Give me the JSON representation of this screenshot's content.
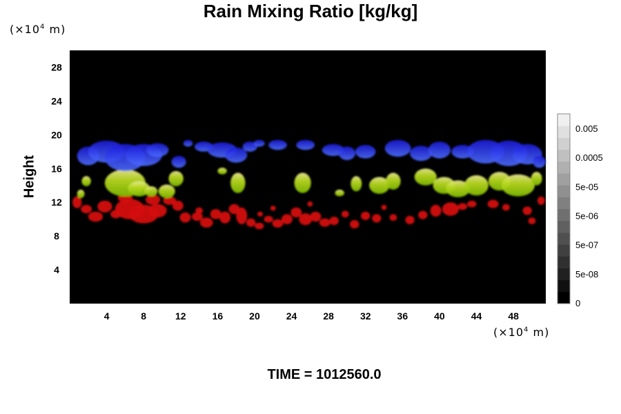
{
  "chart_data": {
    "type": "heatmap",
    "title": "Rain Mixing Ratio [kg/kg]",
    "ylabel": "Height",
    "xlabel": "",
    "x_unit": {
      "prefix": "(×10",
      "exp": "4",
      "suffix": " m)"
    },
    "y_unit": {
      "prefix": "(×10",
      "exp": "4",
      "suffix": " m)"
    },
    "xlim": [
      0,
      51.5
    ],
    "ylim": [
      0,
      30
    ],
    "x_ticks": [
      4,
      8,
      12,
      16,
      20,
      24,
      28,
      32,
      36,
      40,
      44,
      48
    ],
    "y_ticks": [
      4,
      8,
      12,
      16,
      20,
      24,
      28
    ],
    "grid": false,
    "background_color": "#000000",
    "colorbar": {
      "labels": [
        "0",
        "5e-08",
        "5e-07",
        "5e-06",
        "5e-05",
        "0.0005",
        "0.005"
      ],
      "min_color": "#000000",
      "max_color": "#f0f0f0",
      "n_levels": 16
    },
    "layers": [
      {
        "color": "#2222ee",
        "height_range": [
          15.5,
          19.5
        ],
        "description_level": "upper"
      },
      {
        "color": "#99cc00",
        "height_range": [
          12.5,
          16.5
        ],
        "description_level": "middle"
      },
      {
        "color": "#dd1111",
        "height_range": [
          8.5,
          13.0
        ],
        "description_level": "lower"
      }
    ],
    "blobs": {
      "blue": [
        [
          2.0,
          17.5,
          1.2,
          1.1
        ],
        [
          4.0,
          18.0,
          2.0,
          1.3
        ],
        [
          6.0,
          17.3,
          2.2,
          1.6
        ],
        [
          8.0,
          17.6,
          2.0,
          1.3
        ],
        [
          9.5,
          18.2,
          1.2,
          0.8
        ],
        [
          11.8,
          16.8,
          0.8,
          0.7
        ],
        [
          12.8,
          19.0,
          0.5,
          0.4
        ],
        [
          14.5,
          18.6,
          1.0,
          0.6
        ],
        [
          16.5,
          18.2,
          1.6,
          0.9
        ],
        [
          18.0,
          17.6,
          1.2,
          0.9
        ],
        [
          19.5,
          18.6,
          0.8,
          0.6
        ],
        [
          22.5,
          18.8,
          1.0,
          0.6
        ],
        [
          25.5,
          18.8,
          1.0,
          0.6
        ],
        [
          28.5,
          18.2,
          1.2,
          0.7
        ],
        [
          30.0,
          17.8,
          0.9,
          0.8
        ],
        [
          32.0,
          18.0,
          1.1,
          0.8
        ],
        [
          35.5,
          18.4,
          1.4,
          1.0
        ],
        [
          38.0,
          17.8,
          1.2,
          0.9
        ],
        [
          40.0,
          18.2,
          1.2,
          1.0
        ],
        [
          42.5,
          18.0,
          1.2,
          0.8
        ],
        [
          45.0,
          18.0,
          2.0,
          1.4
        ],
        [
          47.5,
          17.8,
          2.0,
          1.5
        ],
        [
          49.5,
          17.7,
          1.6,
          1.2
        ],
        [
          50.8,
          16.8,
          0.7,
          0.7
        ],
        [
          20.5,
          19.0,
          0.6,
          0.4
        ]
      ],
      "green": [
        [
          1.2,
          13.0,
          0.4,
          0.5
        ],
        [
          1.8,
          14.5,
          0.5,
          0.6
        ],
        [
          6.0,
          14.3,
          2.2,
          1.6
        ],
        [
          7.5,
          13.6,
          1.2,
          0.9
        ],
        [
          8.8,
          13.3,
          0.7,
          0.6
        ],
        [
          10.5,
          13.3,
          0.9,
          0.8
        ],
        [
          11.5,
          14.8,
          0.8,
          0.9
        ],
        [
          16.5,
          15.7,
          0.5,
          0.4
        ],
        [
          18.2,
          14.3,
          0.8,
          1.2
        ],
        [
          25.2,
          14.3,
          0.9,
          1.2
        ],
        [
          29.2,
          13.1,
          0.5,
          0.4
        ],
        [
          31.0,
          14.2,
          0.6,
          0.9
        ],
        [
          33.5,
          14.0,
          1.1,
          1.0
        ],
        [
          35.0,
          14.5,
          0.8,
          1.0
        ],
        [
          38.5,
          15.0,
          1.2,
          1.0
        ],
        [
          40.5,
          14.0,
          1.2,
          1.0
        ],
        [
          42.0,
          13.6,
          1.3,
          1.0
        ],
        [
          44.0,
          14.0,
          1.3,
          1.2
        ],
        [
          46.5,
          14.5,
          1.2,
          1.1
        ],
        [
          48.5,
          14.0,
          1.8,
          1.3
        ],
        [
          50.5,
          14.8,
          0.6,
          0.8
        ]
      ],
      "red": [
        [
          0.8,
          12.0,
          0.5,
          0.7
        ],
        [
          1.8,
          11.2,
          0.6,
          0.5
        ],
        [
          2.8,
          10.3,
          0.8,
          0.6
        ],
        [
          3.8,
          11.5,
          0.8,
          0.7
        ],
        [
          5.0,
          10.6,
          0.6,
          0.5
        ],
        [
          6.5,
          11.2,
          1.6,
          1.2
        ],
        [
          8.0,
          10.6,
          1.6,
          1.1
        ],
        [
          9.5,
          11.0,
          1.0,
          0.8
        ],
        [
          10.8,
          12.2,
          0.7,
          0.5
        ],
        [
          11.7,
          11.6,
          0.6,
          0.6
        ],
        [
          12.5,
          10.2,
          0.6,
          0.6
        ],
        [
          13.8,
          10.3,
          0.6,
          0.5
        ],
        [
          14.8,
          9.6,
          0.7,
          0.6
        ],
        [
          15.8,
          10.6,
          0.6,
          0.6
        ],
        [
          16.8,
          10.2,
          0.6,
          0.7
        ],
        [
          17.8,
          11.2,
          0.6,
          0.6
        ],
        [
          18.6,
          10.4,
          0.6,
          1.0
        ],
        [
          19.6,
          9.6,
          0.5,
          0.5
        ],
        [
          20.5,
          9.2,
          0.5,
          0.4
        ],
        [
          21.5,
          10.0,
          0.5,
          0.4
        ],
        [
          22.5,
          9.5,
          0.6,
          0.5
        ],
        [
          23.5,
          10.0,
          0.6,
          0.6
        ],
        [
          24.5,
          10.8,
          0.6,
          0.6
        ],
        [
          25.5,
          10.0,
          0.7,
          0.7
        ],
        [
          26.6,
          10.3,
          0.6,
          0.6
        ],
        [
          27.6,
          9.6,
          0.6,
          0.5
        ],
        [
          28.6,
          9.8,
          0.5,
          0.5
        ],
        [
          29.8,
          10.6,
          0.4,
          0.4
        ],
        [
          30.8,
          9.4,
          0.5,
          0.5
        ],
        [
          32.0,
          10.4,
          0.5,
          0.5
        ],
        [
          33.2,
          10.1,
          0.5,
          0.5
        ],
        [
          35.0,
          10.2,
          0.4,
          0.4
        ],
        [
          36.8,
          9.9,
          0.5,
          0.5
        ],
        [
          38.2,
          10.5,
          0.5,
          0.5
        ],
        [
          39.6,
          11.0,
          0.6,
          0.7
        ],
        [
          41.2,
          11.2,
          0.9,
          0.8
        ],
        [
          42.5,
          11.5,
          0.5,
          0.4
        ],
        [
          43.5,
          11.8,
          0.5,
          0.4
        ],
        [
          45.8,
          11.8,
          0.6,
          0.5
        ],
        [
          47.2,
          11.4,
          0.4,
          0.4
        ],
        [
          49.5,
          11.0,
          0.5,
          0.5
        ],
        [
          50.0,
          9.8,
          0.4,
          0.4
        ],
        [
          51.0,
          12.2,
          0.4,
          0.5
        ],
        [
          6.0,
          12.5,
          0.8,
          0.5
        ],
        [
          9.0,
          12.3,
          0.8,
          0.6
        ],
        [
          14.0,
          11.0,
          0.4,
          0.4
        ],
        [
          20.6,
          10.6,
          0.3,
          0.3
        ],
        [
          26.0,
          11.8,
          0.3,
          0.3
        ],
        [
          34.0,
          11.4,
          0.3,
          0.3
        ],
        [
          22.0,
          11.3,
          0.3,
          0.3
        ]
      ]
    }
  },
  "time_label": "TIME = 1012560.0"
}
